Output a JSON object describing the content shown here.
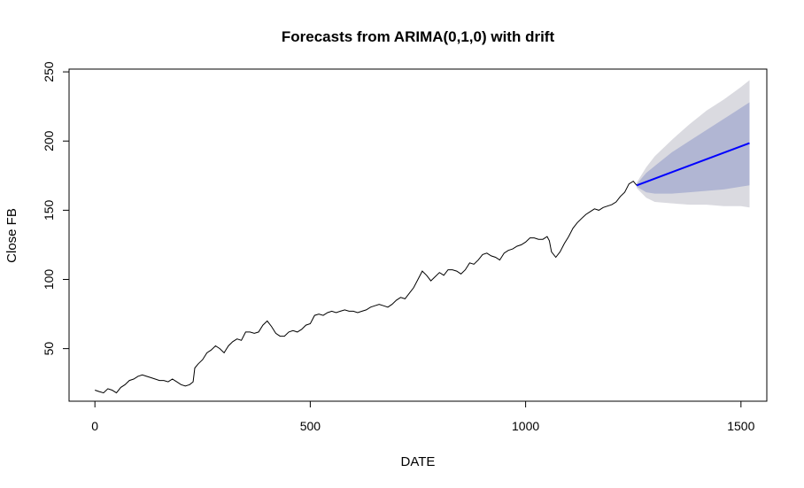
{
  "chart_data": {
    "type": "line",
    "title": "Forecasts from ARIMA(0,1,0) with drift",
    "xlabel": "DATE",
    "ylabel": "Close FB",
    "xlim": [
      -60,
      1560
    ],
    "ylim": [
      12,
      252
    ],
    "x_ticks": [
      0,
      500,
      1000,
      1500
    ],
    "x_tick_labels": [
      "0",
      "500",
      "1000",
      "1500"
    ],
    "y_ticks": [
      50,
      100,
      150,
      200,
      250
    ],
    "y_tick_labels": [
      "50",
      "100",
      "150",
      "200",
      "250"
    ],
    "grid": false,
    "legend": "none",
    "colors": {
      "history": "#000000",
      "forecast": "#0000ff",
      "interval_80": "#b1b6d3",
      "interval_95": "#dadae0"
    },
    "series": [
      {
        "role": "history",
        "x": [
          0,
          10,
          20,
          30,
          40,
          50,
          60,
          70,
          80,
          90,
          100,
          110,
          120,
          130,
          140,
          150,
          160,
          170,
          180,
          190,
          200,
          210,
          220,
          228,
          232,
          240,
          250,
          260,
          270,
          280,
          290,
          300,
          310,
          320,
          330,
          340,
          350,
          360,
          370,
          380,
          390,
          400,
          410,
          420,
          430,
          440,
          450,
          460,
          470,
          480,
          490,
          500,
          510,
          520,
          530,
          540,
          550,
          560,
          570,
          580,
          590,
          600,
          610,
          620,
          630,
          640,
          650,
          660,
          670,
          680,
          690,
          700,
          710,
          720,
          730,
          740,
          750,
          760,
          770,
          780,
          790,
          800,
          810,
          820,
          830,
          840,
          850,
          860,
          870,
          880,
          890,
          900,
          910,
          920,
          930,
          940,
          950,
          960,
          970,
          980,
          990,
          1000,
          1010,
          1020,
          1030,
          1040,
          1050,
          1055,
          1060,
          1070,
          1080,
          1090,
          1100,
          1110,
          1120,
          1130,
          1140,
          1150,
          1160,
          1170,
          1180,
          1190,
          1200,
          1210,
          1220,
          1230,
          1240,
          1250,
          1258
        ],
        "values": [
          20,
          19,
          18,
          21,
          20,
          18,
          22,
          24,
          27,
          28,
          30,
          31,
          30,
          29,
          28,
          27,
          27,
          26,
          28,
          26,
          24,
          23,
          24,
          26,
          36,
          39,
          42,
          47,
          49,
          52,
          50,
          47,
          52,
          55,
          57,
          56,
          62,
          62,
          61,
          62,
          67,
          70,
          66,
          61,
          59,
          59,
          62,
          63,
          62,
          64,
          67,
          68,
          74,
          75,
          74,
          76,
          77,
          76,
          77,
          78,
          77,
          77,
          76,
          77,
          78,
          80,
          81,
          82,
          81,
          80,
          82,
          85,
          87,
          86,
          90,
          94,
          100,
          106,
          103,
          99,
          102,
          105,
          103,
          107,
          107,
          106,
          104,
          107,
          112,
          111,
          114,
          118,
          119,
          117,
          116,
          114,
          119,
          121,
          122,
          124,
          125,
          127,
          130,
          130,
          129,
          129,
          131,
          128,
          120,
          116,
          120,
          126,
          131,
          137,
          141,
          144,
          147,
          149,
          151,
          150,
          152,
          153,
          154,
          156,
          160,
          163,
          169,
          171,
          168
        ]
      },
      {
        "role": "forecast",
        "x": [
          1258,
          1520
        ],
        "values": [
          168,
          198.5
        ]
      },
      {
        "role": "interval_95",
        "x": [
          1258,
          1280,
          1300,
          1340,
          1380,
          1420,
          1460,
          1500,
          1520
        ],
        "upper": [
          170,
          181,
          189,
          201,
          212,
          222,
          230,
          239,
          244
        ],
        "lower": [
          166,
          159,
          156,
          155,
          154,
          154,
          153,
          153,
          152
        ]
      },
      {
        "role": "interval_80",
        "x": [
          1258,
          1280,
          1300,
          1340,
          1380,
          1420,
          1460,
          1500,
          1520
        ],
        "upper": [
          169,
          177,
          182,
          192,
          200,
          208,
          216,
          224,
          228
        ],
        "lower": [
          167,
          163,
          162,
          162,
          163,
          164,
          165,
          167,
          168
        ]
      }
    ]
  }
}
